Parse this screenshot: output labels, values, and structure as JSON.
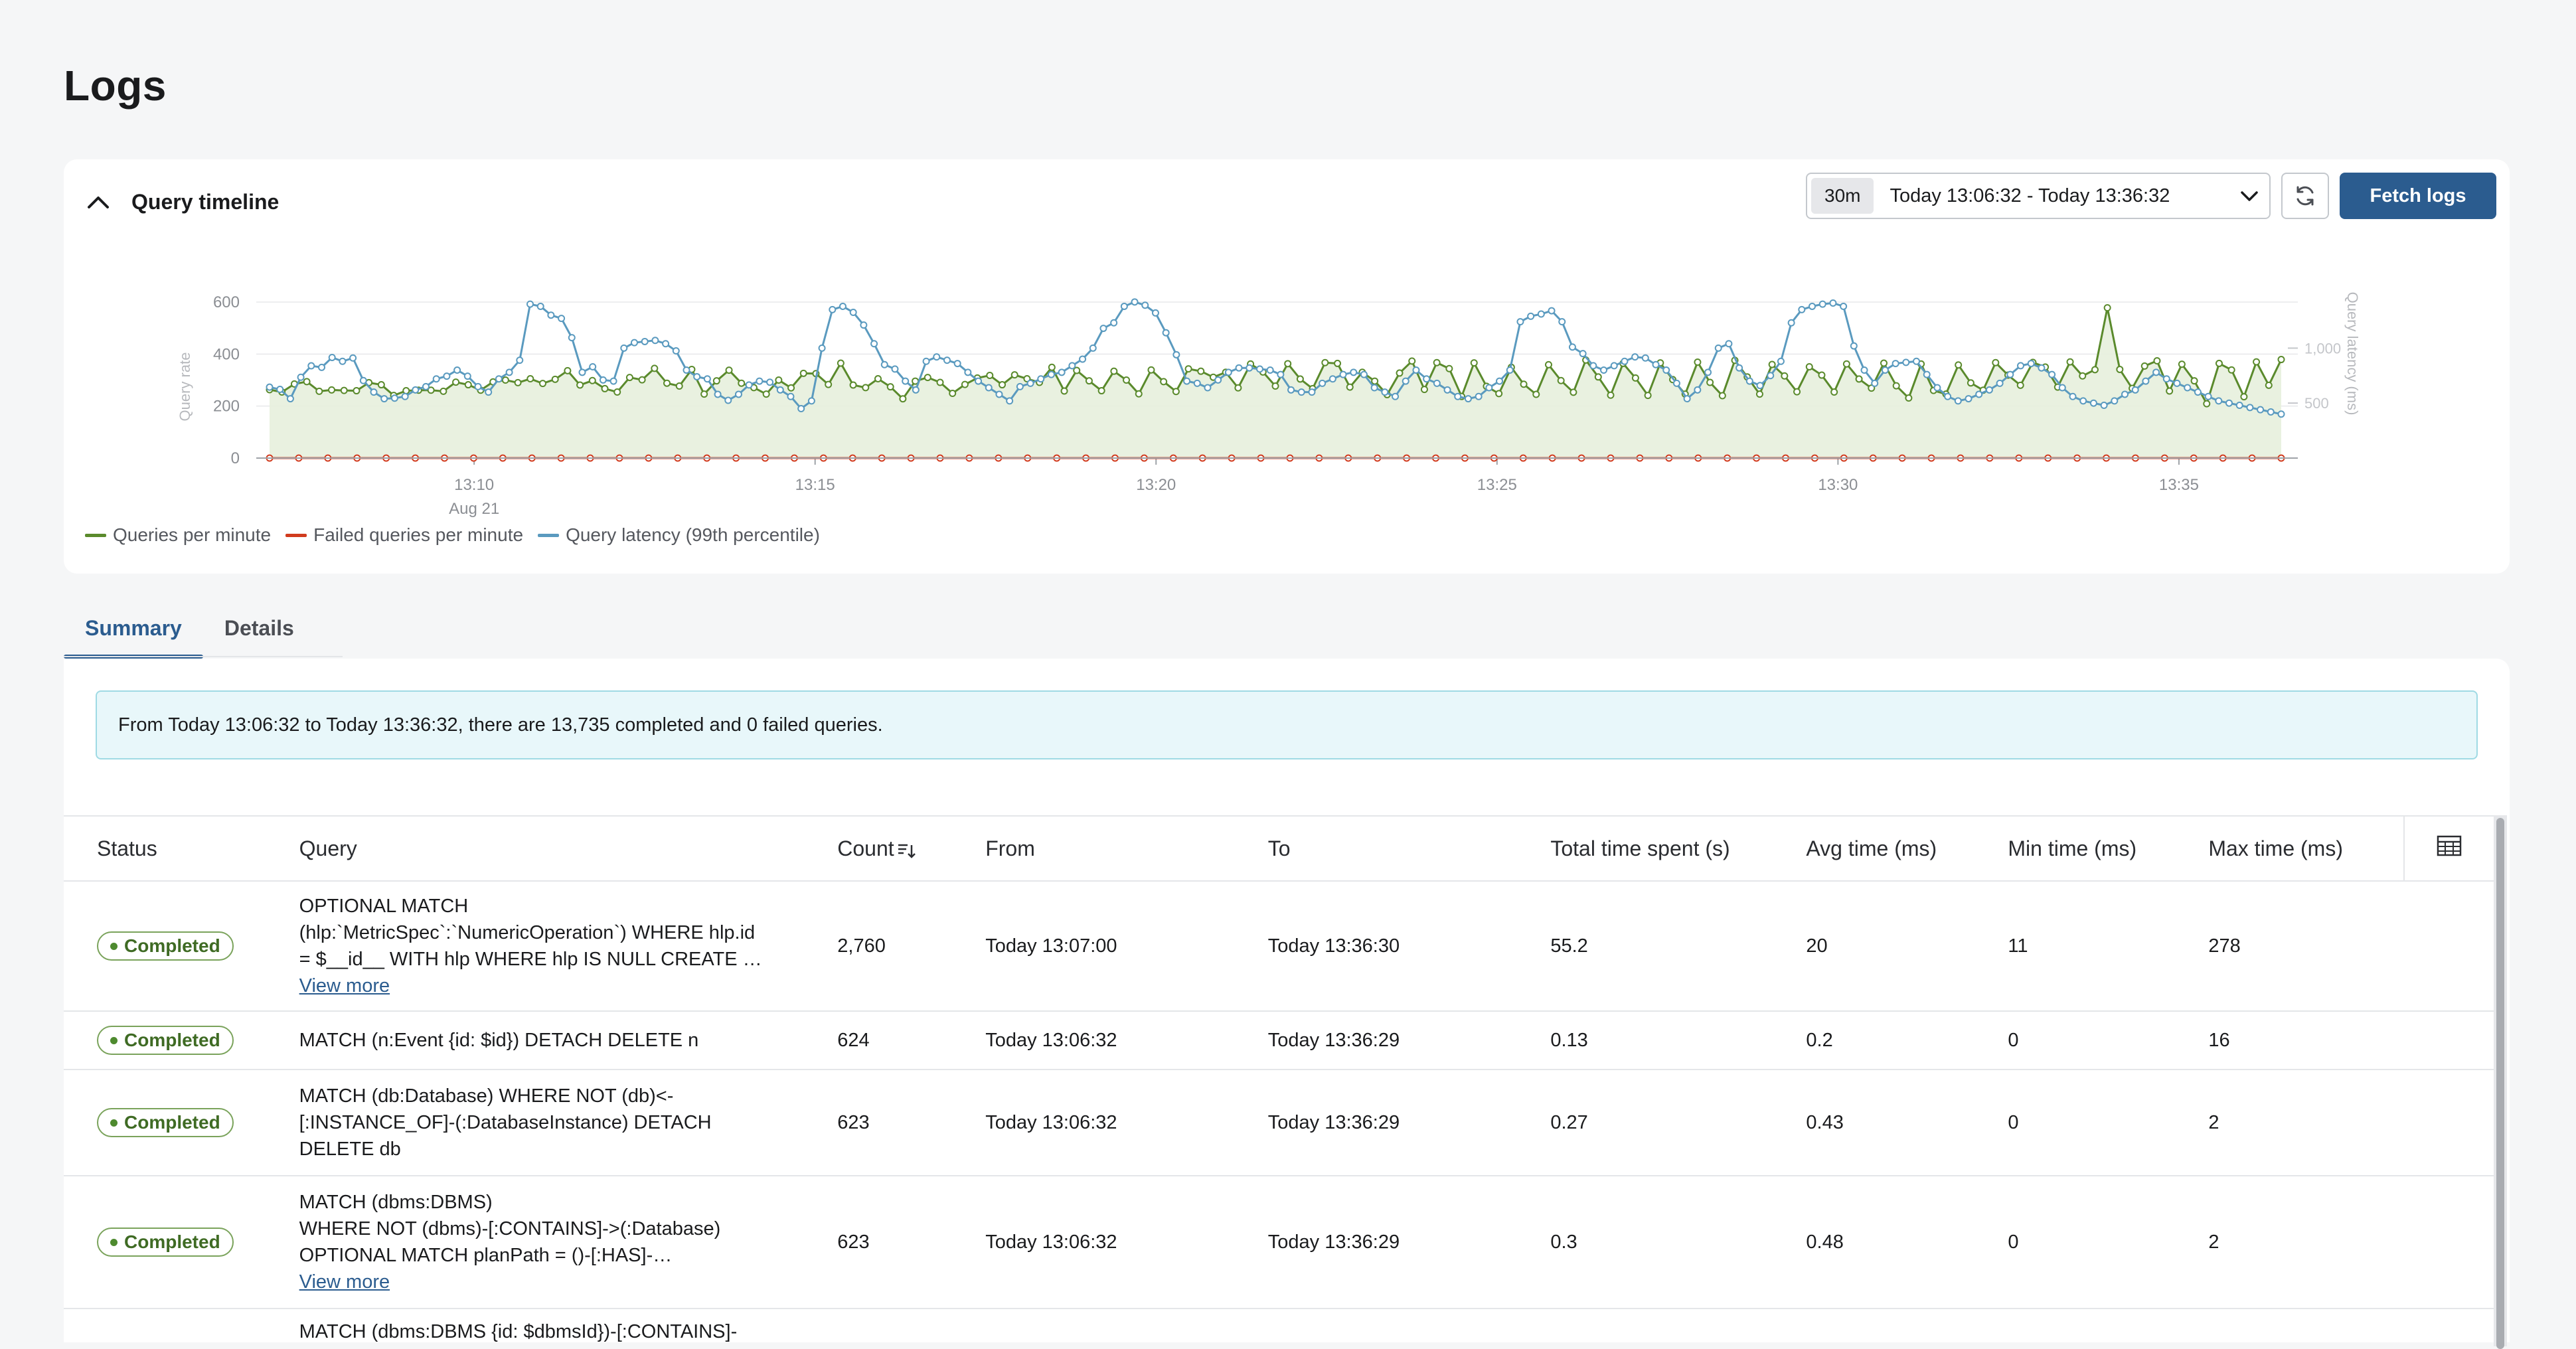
{
  "page": {
    "title": "Logs"
  },
  "timeline": {
    "title": "Query timeline",
    "range_chip": "30m",
    "range_text": "Today 13:06:32 - Today 13:36:32",
    "fetch_label": "Fetch logs",
    "legend": {
      "qpm": "Queries per minute",
      "failed": "Failed queries per minute",
      "latency": "Query latency (99th percentile)"
    }
  },
  "chart_data": {
    "type": "line",
    "title": "",
    "ylabel": "Query rate",
    "y2label": "Query latency (ms)",
    "ylim": [
      0,
      600
    ],
    "y2ticks": [
      500,
      1000
    ],
    "yticks": [
      0,
      200,
      400,
      600
    ],
    "xticks": [
      "13:10",
      "13:15",
      "13:20",
      "13:25",
      "13:30",
      "13:35"
    ],
    "xticks_sub": [
      "Aug 21",
      "",
      "",
      "",
      "",
      ""
    ],
    "x_start": "13:07:00",
    "x_end": "13:36:30",
    "grid": true,
    "legend_position": "bottom-left",
    "colors": {
      "qpm": "#5a8a2c",
      "failed": "#d13b1e",
      "latency": "#5a9abf"
    },
    "series": [
      {
        "name": "Queries per minute",
        "axis": "left",
        "values": [
          263,
          254,
          285,
          294,
          257,
          262,
          260,
          259,
          290,
          282,
          241,
          259,
          261,
          261,
          257,
          292,
          282,
          261,
          293,
          300,
          290,
          305,
          287,
          303,
          336,
          281,
          298,
          267,
          254,
          310,
          301,
          345,
          288,
          277,
          341,
          246,
          297,
          338,
          288,
          271,
          246,
          300,
          270,
          326,
          325,
          283,
          365,
          281,
          271,
          305,
          274,
          228,
          296,
          310,
          291,
          249,
          283,
          308,
          318,
          282,
          320,
          305,
          291,
          349,
          258,
          337,
          297,
          259,
          334,
          300,
          247,
          339,
          294,
          256,
          343,
          334,
          311,
          330,
          270,
          362,
          331,
          277,
          363,
          304,
          267,
          367,
          364,
          273,
          330,
          296,
          244,
          327,
          373,
          264,
          367,
          344,
          237,
          366,
          276,
          248,
          349,
          284,
          245,
          359,
          298,
          253,
          377,
          312,
          242,
          364,
          308,
          241,
          366,
          302,
          246,
          369,
          291,
          240,
          376,
          312,
          246,
          360,
          316,
          255,
          351,
          319,
          254,
          362,
          304,
          269,
          365,
          278,
          231,
          362,
          260,
          246,
          358,
          289,
          261,
          367,
          319,
          280,
          368,
          350,
          273,
          370,
          316,
          340,
          578,
          341,
          268,
          354,
          374,
          258,
          361,
          297,
          209,
          364,
          339,
          236,
          370,
          280,
          379
        ]
      },
      {
        "name": "Failed queries per minute",
        "axis": "left",
        "values": [
          0,
          0,
          0,
          0,
          0,
          0,
          0,
          0,
          0,
          0,
          0,
          0,
          0,
          0,
          0,
          0,
          0,
          0,
          0,
          0,
          0,
          0,
          0,
          0,
          0,
          0,
          0,
          0,
          0,
          0,
          0,
          0,
          0,
          0,
          0,
          0,
          0,
          0,
          0,
          0,
          0,
          0,
          0,
          0,
          0,
          0,
          0,
          0,
          0,
          0,
          0,
          0,
          0,
          0,
          0,
          0,
          0,
          0,
          0,
          0,
          0,
          0,
          0,
          0,
          0,
          0,
          0,
          0,
          0,
          0
        ]
      },
      {
        "name": "Query latency (99th percentile)",
        "axis": "right",
        "values": [
          645,
          625,
          540,
          735,
          839,
          825,
          915,
          880,
          910,
          705,
          600,
          540,
          545,
          560,
          620,
          650,
          720,
          745,
          800,
          745,
          650,
          600,
          720,
          780,
          890,
          1400,
          1380,
          1300,
          1270,
          1095,
          780,
          830,
          710,
          700,
          1000,
          1050,
          1060,
          1070,
          1040,
          975,
          800,
          740,
          720,
          580,
          525,
          580,
          665,
          700,
          690,
          620,
          560,
          450,
          520,
          1000,
          1350,
          1380,
          1325,
          1210,
          1040,
          850,
          810,
          700,
          620,
          880,
          920,
          890,
          860,
          780,
          700,
          640,
          580,
          520,
          650,
          680,
          720,
          760,
          780,
          840,
          900,
          1000,
          1180,
          1230,
          1380,
          1420,
          1390,
          1320,
          1140,
          940,
          700,
          680,
          640,
          710,
          780,
          820,
          820,
          810,
          800,
          760,
          620,
          600,
          600,
          680,
          720,
          760,
          780,
          760,
          640,
          600,
          560,
          700,
          800,
          720,
          680,
          620,
          560,
          540,
          560,
          640,
          700,
          800,
          1240,
          1290,
          1310,
          1340,
          1240,
          1010,
          950,
          840,
          800,
          840,
          880,
          920,
          910,
          850,
          800,
          680,
          540,
          620,
          780,
          1000,
          1040,
          820,
          700,
          660,
          750,
          880,
          1230,
          1350,
          1380,
          1400,
          1410,
          1380,
          1020,
          800,
          680,
          800,
          860,
          870,
          880,
          760,
          640,
          560,
          520,
          540,
          580,
          620,
          680,
          760,
          840,
          860,
          820,
          760,
          640,
          560,
          520,
          500,
          480,
          520,
          580,
          620,
          700,
          780,
          720,
          680,
          640,
          600,
          560,
          520,
          500,
          480,
          460,
          440,
          420,
          400
        ]
      }
    ]
  },
  "tabs": {
    "summary": "Summary",
    "details": "Details"
  },
  "summary": {
    "banner": "From Today 13:06:32 to Today 13:36:32, there are 13,735 completed and 0 failed queries.",
    "columns": {
      "status": "Status",
      "query": "Query",
      "count": "Count",
      "from": "From",
      "to": "To",
      "total": "Total time spent (s)",
      "avg": "Avg time (ms)",
      "min": "Min time (ms)",
      "max": "Max time (ms)"
    },
    "view_more": "View more",
    "rows": [
      {
        "status": "Completed",
        "query": "OPTIONAL MATCH\n(hlp:`MetricSpec`:`NumericOperation`) WHERE hlp.id\n= $__id__ WITH hlp WHERE hlp IS NULL CREATE …",
        "count": "2,760",
        "from": "Today 13:07:00",
        "to": "Today 13:36:30",
        "total": "55.2",
        "avg": "20",
        "min": "11",
        "max": "278"
      },
      {
        "status": "Completed",
        "query": "MATCH (n:Event {id: $id}) DETACH DELETE n",
        "count": "624",
        "from": "Today 13:06:32",
        "to": "Today 13:36:29",
        "total": "0.13",
        "avg": "0.2",
        "min": "0",
        "max": "16"
      },
      {
        "status": "Completed",
        "query": "MATCH (db:Database) WHERE NOT (db)<-\n[:INSTANCE_OF]-(:DatabaseInstance) DETACH\nDELETE db",
        "count": "623",
        "from": "Today 13:06:32",
        "to": "Today 13:36:29",
        "total": "0.27",
        "avg": "0.43",
        "min": "0",
        "max": "2"
      },
      {
        "status": "Completed",
        "query": "MATCH (dbms:DBMS)\nWHERE NOT (dbms)-[:CONTAINS]->(:Database)\nOPTIONAL MATCH planPath = ()-[:HAS]-…",
        "count": "623",
        "from": "Today 13:06:32",
        "to": "Today 13:36:29",
        "total": "0.3",
        "avg": "0.48",
        "min": "0",
        "max": "2"
      },
      {
        "status": "",
        "query": "MATCH (dbms:DBMS {id: $dbmsId})-[:CONTAINS]-",
        "count": "",
        "from": "",
        "to": "",
        "total": "",
        "avg": "",
        "min": "",
        "max": ""
      }
    ]
  }
}
